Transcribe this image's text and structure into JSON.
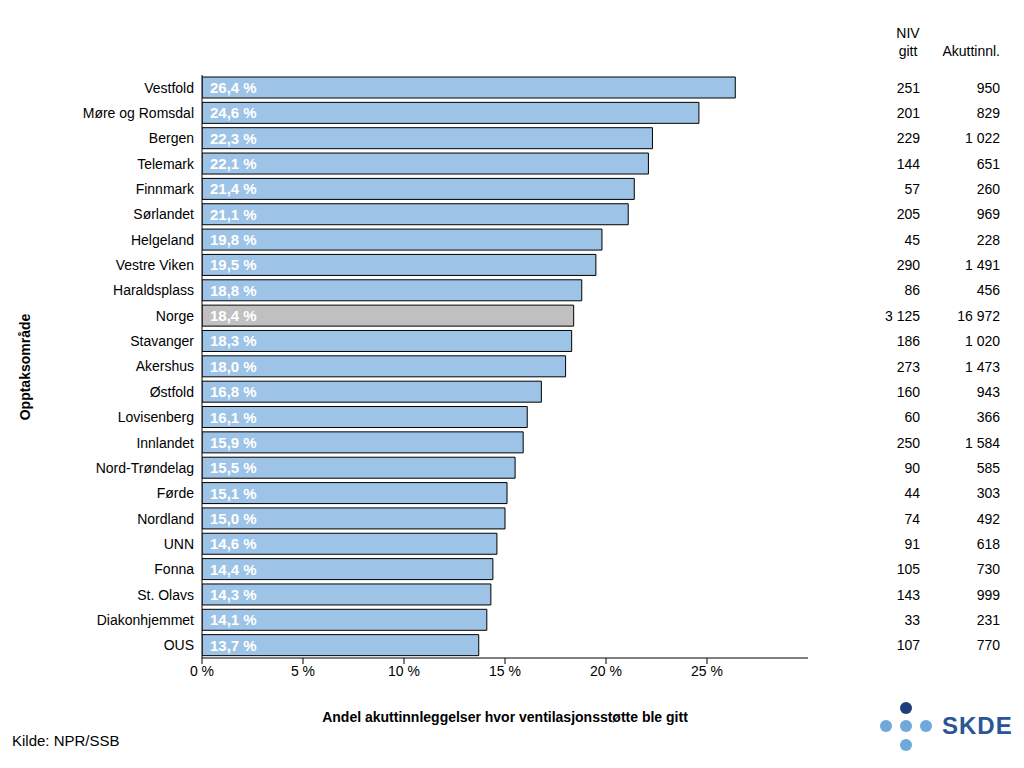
{
  "chart_data": {
    "type": "bar",
    "orientation": "horizontal",
    "x_label": "Andel akuttinnleggelser hvor ventilasjonsstøtte ble gitt",
    "y_label": "Opptaksområde",
    "source": "Kilde: NPR/SSB",
    "logo": "SKDE",
    "categories": [
      "Vestfold",
      "Møre og Romsdal",
      "Bergen",
      "Telemark",
      "Finnmark",
      "Sørlandet",
      "Helgeland",
      "Vestre Viken",
      "Haraldsplass",
      "Norge",
      "Stavanger",
      "Akershus",
      "Østfold",
      "Lovisenberg",
      "Innlandet",
      "Nord-Trøndelag",
      "Førde",
      "Nordland",
      "UNN",
      "Fonna",
      "St. Olavs",
      "Diakonhjemmet",
      "OUS"
    ],
    "values": [
      26.4,
      24.6,
      22.3,
      22.1,
      21.4,
      21.1,
      19.8,
      19.5,
      18.8,
      18.4,
      18.3,
      18.0,
      16.8,
      16.1,
      15.9,
      15.5,
      15.1,
      15.0,
      14.6,
      14.4,
      14.3,
      14.1,
      13.7
    ],
    "value_labels": [
      "26,4 %",
      "24,6 %",
      "22,3 %",
      "22,1 %",
      "21,4 %",
      "21,1 %",
      "19,8 %",
      "19,5 %",
      "18,8 %",
      "18,4 %",
      "18,3 %",
      "18,0 %",
      "16,8 %",
      "16,1 %",
      "15,9 %",
      "15,5 %",
      "15,1 %",
      "15,0 %",
      "14,6 %",
      "14,4 %",
      "14,3 %",
      "14,1 %",
      "13,7 %"
    ],
    "data_labels": true,
    "colors": [
      "#9dc3e6",
      "#9dc3e6",
      "#9dc3e6",
      "#9dc3e6",
      "#9dc3e6",
      "#9dc3e6",
      "#9dc3e6",
      "#9dc3e6",
      "#9dc3e6",
      "#c0c0c0",
      "#9dc3e6",
      "#9dc3e6",
      "#9dc3e6",
      "#9dc3e6",
      "#9dc3e6",
      "#9dc3e6",
      "#9dc3e6",
      "#9dc3e6",
      "#9dc3e6",
      "#9dc3e6",
      "#9dc3e6",
      "#9dc3e6",
      "#9dc3e6"
    ],
    "xlim": [
      0,
      30
    ],
    "xticks": [
      {
        "value": 0,
        "label": "0 %"
      },
      {
        "value": 5,
        "label": "5 %"
      },
      {
        "value": 10,
        "label": "10 %"
      },
      {
        "value": 15,
        "label": "15 %"
      },
      {
        "value": 20,
        "label": "20 %"
      },
      {
        "value": 25,
        "label": "25 %"
      }
    ],
    "grid": false,
    "columns": [
      {
        "header": "NIV gitt",
        "values": [
          251,
          201,
          229,
          144,
          57,
          205,
          45,
          290,
          86,
          3125,
          186,
          273,
          160,
          60,
          250,
          90,
          44,
          74,
          91,
          105,
          143,
          33,
          107
        ],
        "value_labels": [
          "251",
          "201",
          "229",
          "144",
          "57",
          "205",
          "45",
          "290",
          "86",
          "3 125",
          "186",
          "273",
          "160",
          "60",
          "250",
          "90",
          "44",
          "74",
          "91",
          "105",
          "143",
          "33",
          "107"
        ]
      },
      {
        "header": "Akuttinnl.",
        "values": [
          950,
          829,
          1022,
          651,
          260,
          969,
          228,
          1491,
          456,
          16972,
          1020,
          1473,
          943,
          366,
          1584,
          585,
          303,
          492,
          618,
          730,
          999,
          231,
          770
        ],
        "value_labels": [
          "950",
          "829",
          "1 022",
          "651",
          "260",
          "969",
          "228",
          "1 491",
          "456",
          "16 972",
          "1 020",
          "1 473",
          "943",
          "366",
          "1 584",
          "585",
          "303",
          "492",
          "618",
          "730",
          "999",
          "231",
          "770"
        ]
      }
    ]
  }
}
